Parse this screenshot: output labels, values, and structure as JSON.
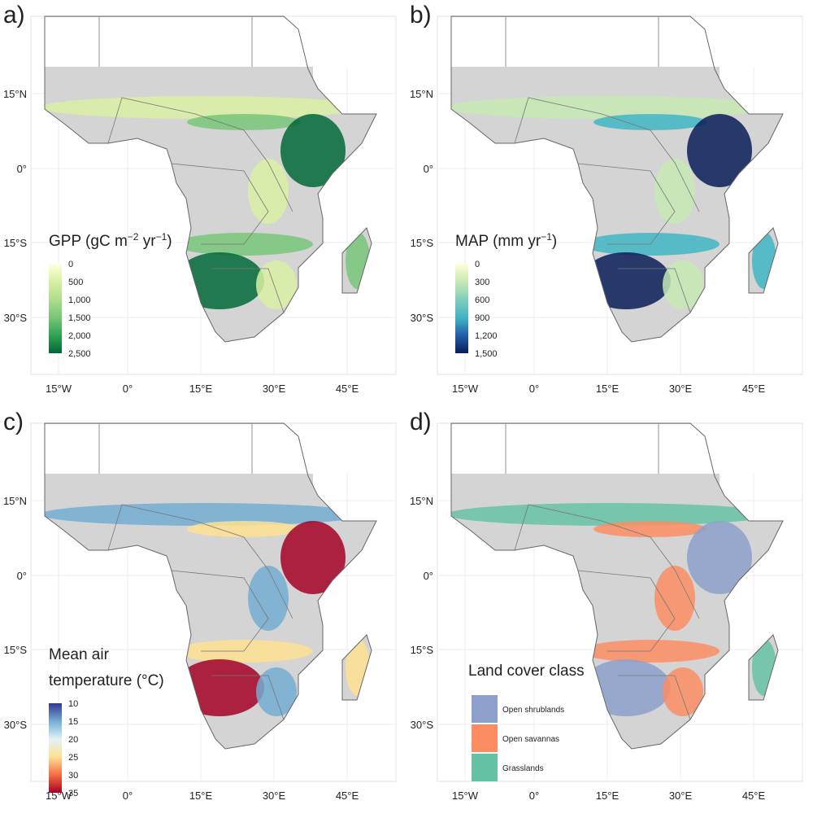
{
  "axes": {
    "lon_ticks": [
      "15°W",
      "0°",
      "15°E",
      "30°E",
      "45°E"
    ],
    "lat_ticks": [
      "15°N",
      "0°",
      "15°S",
      "30°S"
    ]
  },
  "panels": [
    {
      "label": "a)",
      "legend": {
        "kind": "gradient",
        "title_lines": [
          [
            {
              "text": "GPP (gC m"
            },
            {
              "text": "−2",
              "sup": true
            },
            {
              "text": " yr"
            },
            {
              "text": "−1",
              "sup": true
            },
            {
              "text": ")"
            }
          ]
        ],
        "labels": [
          "0",
          "500",
          "1,000",
          "1,500",
          "2,000",
          "2,500"
        ],
        "colors": [
          "#ffffe0",
          "#d9f0a3",
          "#addd8e",
          "#78c679",
          "#31a354",
          "#006837"
        ]
      }
    },
    {
      "label": "b)",
      "legend": {
        "kind": "gradient",
        "title_lines": [
          [
            {
              "text": "MAP (mm yr"
            },
            {
              "text": "−1",
              "sup": true
            },
            {
              "text": ")"
            }
          ]
        ],
        "labels": [
          "0",
          "300",
          "600",
          "900",
          "1,200",
          "1,500"
        ],
        "colors": [
          "#ffffd9",
          "#c7e9b4",
          "#7fcdbb",
          "#41b6c4",
          "#225ea8",
          "#081d58"
        ]
      }
    },
    {
      "label": "c)",
      "legend": {
        "kind": "gradient",
        "title_lines": [
          [
            {
              "text": "Mean air"
            }
          ],
          [
            {
              "text": "temperature (°C)"
            }
          ]
        ],
        "labels": [
          "10",
          "15",
          "20",
          "25",
          "30",
          "35"
        ],
        "colors": [
          "#313695",
          "#74add1",
          "#e0f3f8",
          "#fee090",
          "#f46d43",
          "#a50026"
        ]
      }
    },
    {
      "label": "d)",
      "legend": {
        "kind": "classes",
        "title_lines": [
          [
            {
              "text": "Land cover class"
            }
          ]
        ],
        "labels": [
          "Open shrublands",
          "Open savannas",
          "Grasslands"
        ],
        "colors": [
          "#8da0cb",
          "#fc8d62",
          "#66c2a5"
        ]
      }
    }
  ]
}
